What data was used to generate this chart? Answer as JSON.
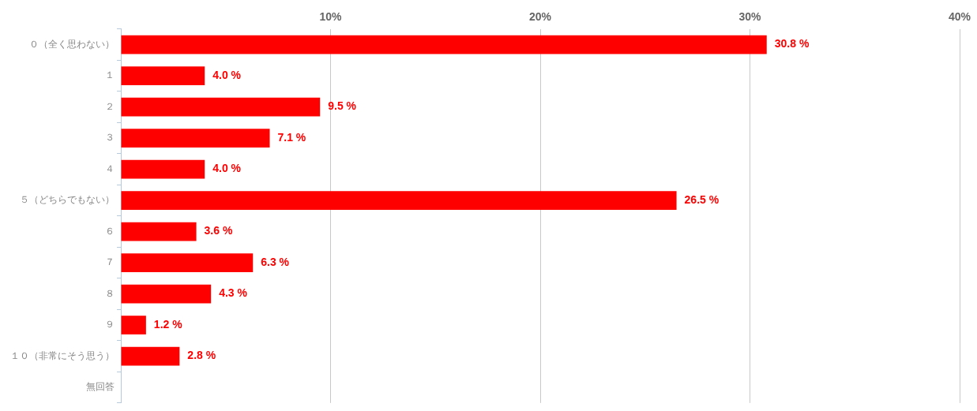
{
  "chart_data": {
    "type": "bar",
    "orientation": "horizontal",
    "categories": [
      "０（全く思わない）",
      "１",
      "２",
      "３",
      "４",
      "５（どちらでもない）",
      "６",
      "７",
      "８",
      "９",
      "１０（非常にそう思う）",
      "無回答"
    ],
    "series": [
      {
        "color": "#ff0000",
        "values": [
          30.8,
          4.0,
          9.5,
          7.1,
          4.0,
          26.5,
          3.6,
          6.3,
          4.3,
          1.2,
          2.8,
          null
        ],
        "value_labels": [
          "30.8 %",
          "4.0 %",
          "9.5 %",
          "7.1 %",
          "4.0 %",
          "26.5 %",
          "3.6 %",
          "6.3 %",
          "4.3 %",
          "1.2 %",
          "2.8 %",
          null
        ]
      }
    ],
    "xlim": [
      0,
      40
    ],
    "xticks": [
      {
        "value": 0,
        "label": null
      },
      {
        "value": 10,
        "label": "10%"
      },
      {
        "value": 20,
        "label": "20%"
      },
      {
        "value": 30,
        "label": "30%"
      },
      {
        "value": 40,
        "label": "40%"
      }
    ],
    "grid": "x",
    "legend": false
  }
}
